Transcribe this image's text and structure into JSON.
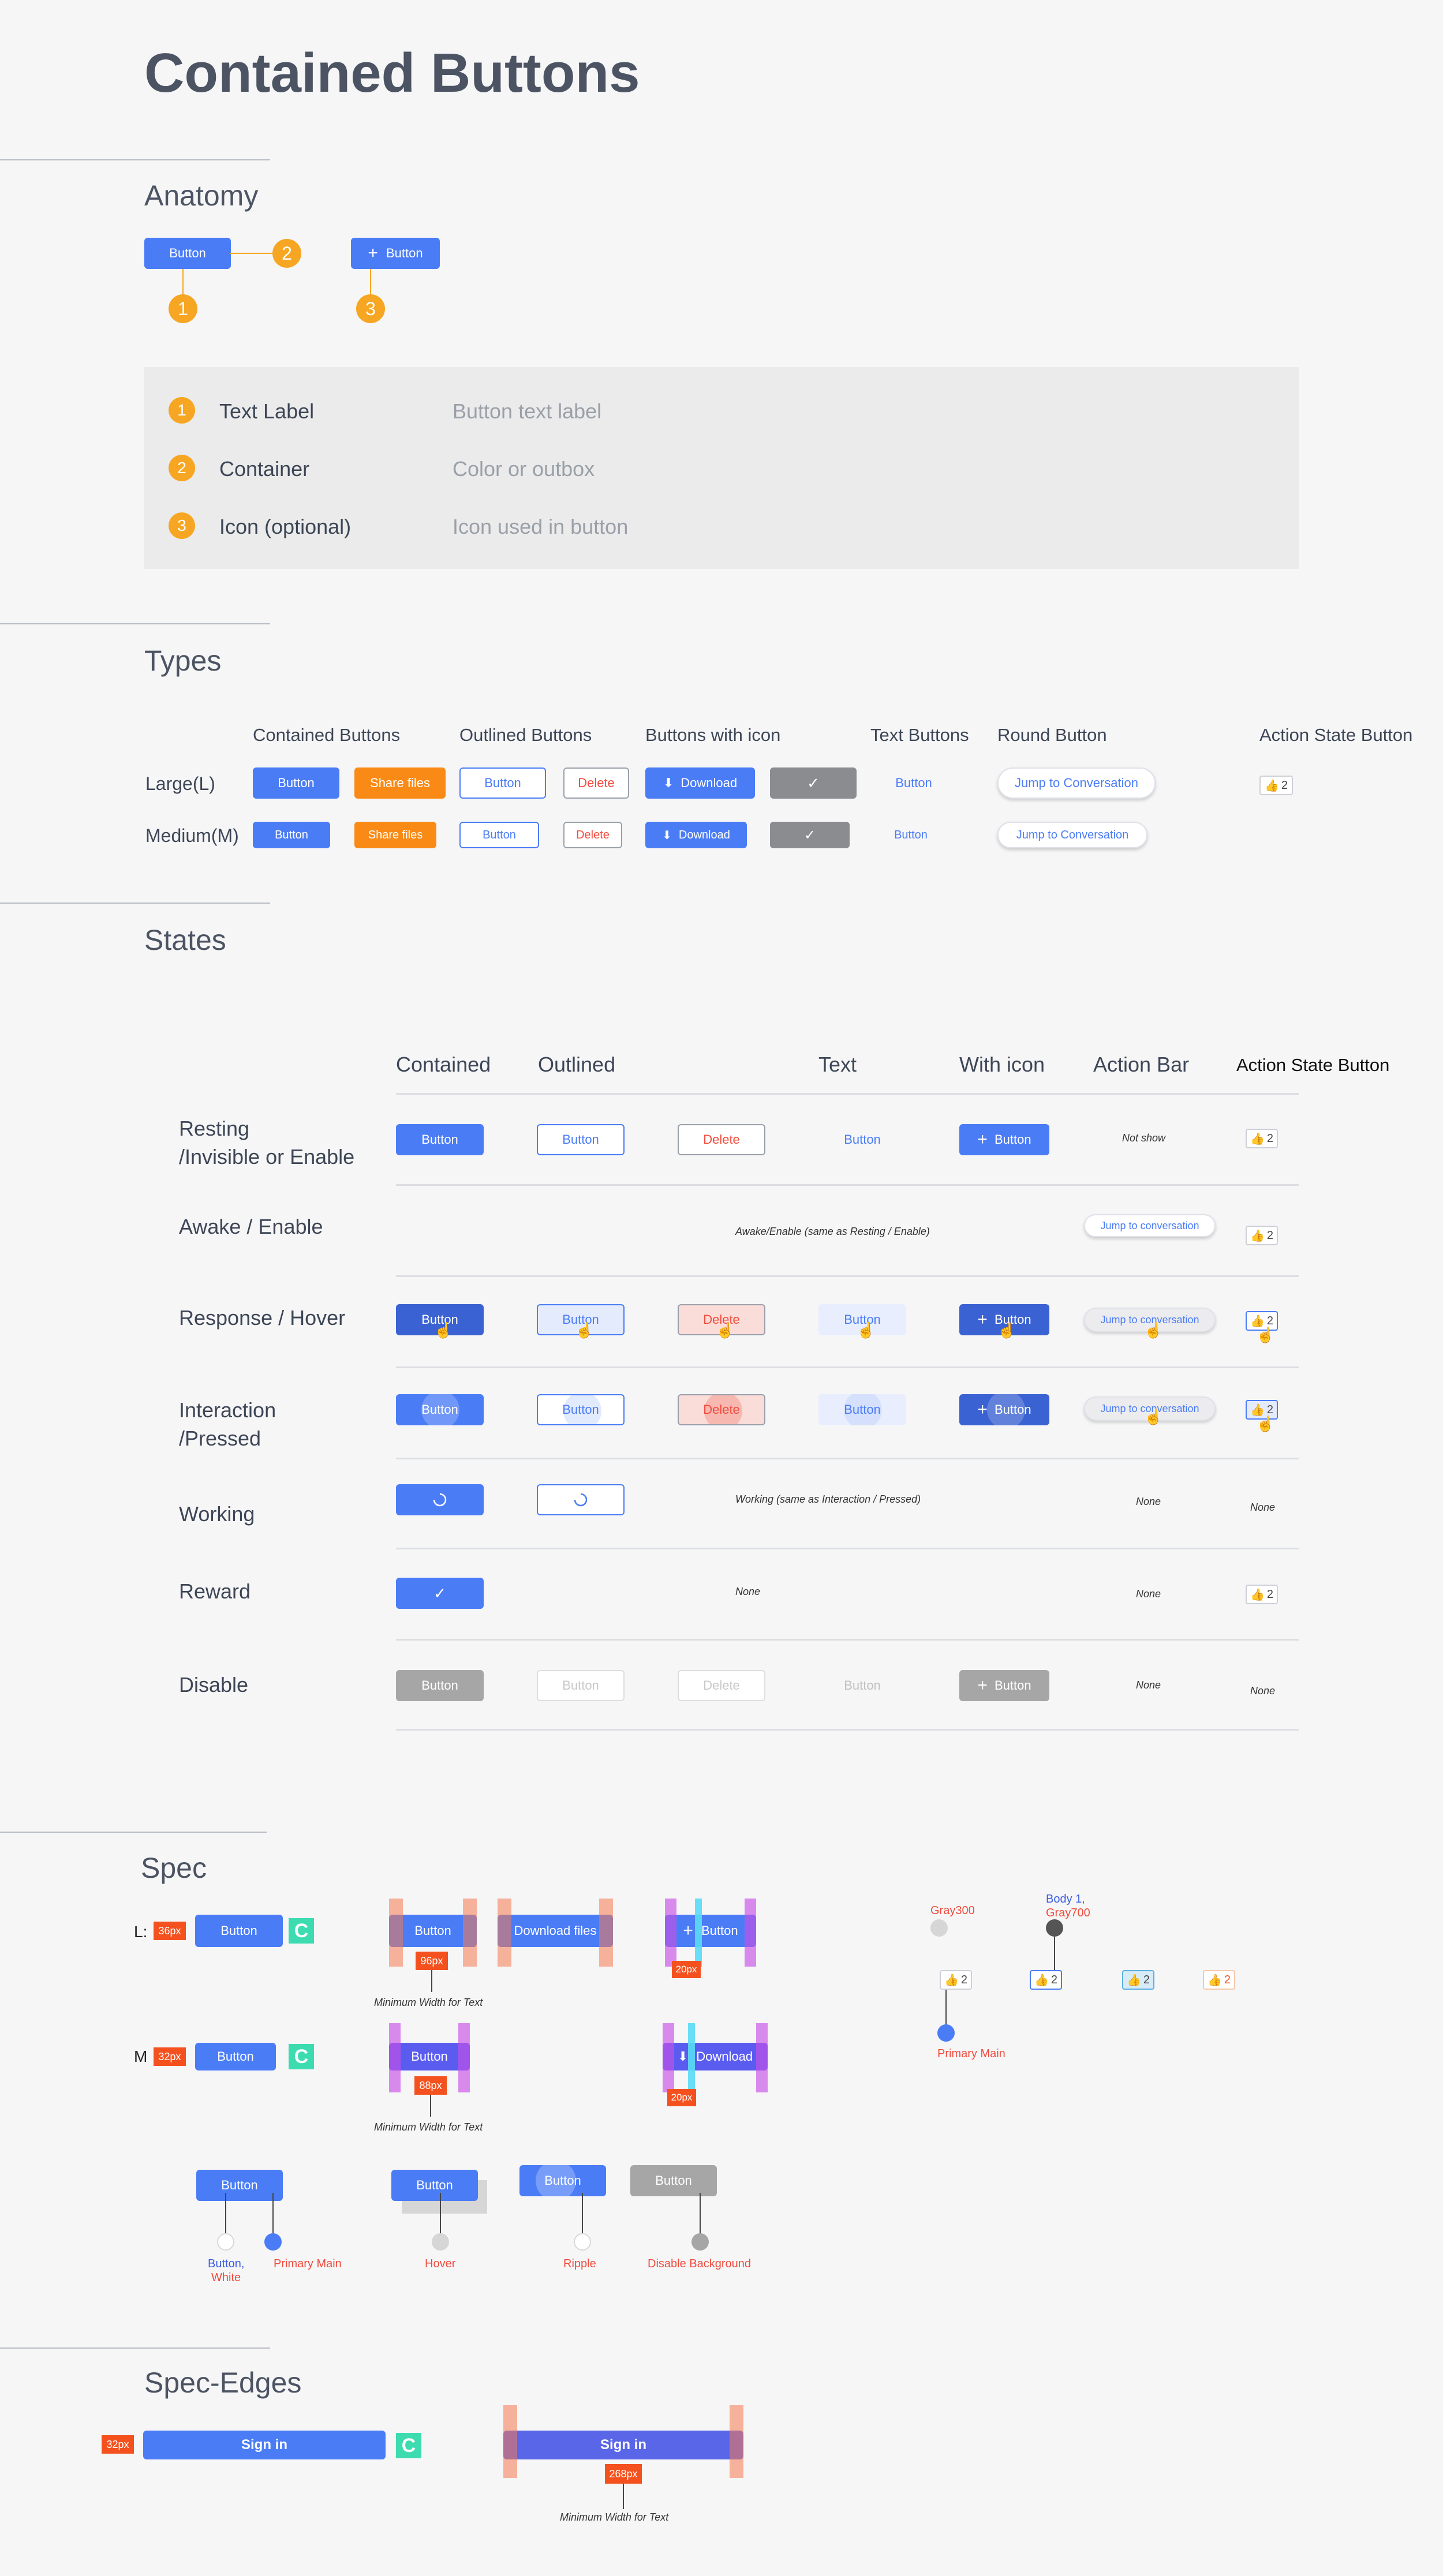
{
  "title": "Contained Buttons",
  "anatomy": {
    "heading": "Anatomy",
    "button_label": "Button",
    "icon_button_label": "Button",
    "markers": [
      "1",
      "2",
      "3"
    ],
    "legend": [
      {
        "num": "1",
        "name": "Text Label",
        "desc": "Button text label"
      },
      {
        "num": "2",
        "name": "Container",
        "desc": "Color or outbox"
      },
      {
        "num": "3",
        "name": "Icon (optional)",
        "desc": "Icon used in button"
      }
    ]
  },
  "types": {
    "heading": "Types",
    "columns": [
      "Contained Buttons",
      "Outlined Buttons",
      "Buttons with icon",
      "Text Buttons",
      "Round Button",
      "Action State Button"
    ],
    "rows": [
      "Large(L)",
      "Medium(M)"
    ],
    "labels": {
      "button": "Button",
      "share": "Share files",
      "delete": "Delete",
      "download": "Download",
      "round": "Jump to Conversation",
      "count": "2"
    }
  },
  "states": {
    "heading": "States",
    "columns": [
      "Contained",
      "Outlined",
      "Text",
      "With icon",
      "Action Bar",
      "Action State Button"
    ],
    "rows": [
      "Resting\n/Invisible or Enable",
      "Awake / Enable",
      "Response / Hover",
      "Interaction\n/Pressed",
      "Working",
      "Reward",
      "Disable"
    ],
    "labels": {
      "button": "Button",
      "delete": "Delete",
      "jump": "Jump to conversation",
      "count": "2"
    },
    "notes": {
      "not_show": "Not show",
      "awake": "Awake/Enable (same as Resting / Enable)",
      "working": "Working (same as Interaction / Pressed)",
      "none": "None"
    }
  },
  "spec": {
    "heading": "Spec",
    "row_l": "L:",
    "row_m": "M",
    "button": "Button",
    "download_files": "Download files",
    "download": "Download",
    "tags": {
      "h36": "36px",
      "h32": "32px",
      "w96": "96px",
      "w88": "88px",
      "g20": "20px",
      "g20b": "20px"
    },
    "c": "C",
    "min_width": "Minimum Width for Text",
    "action_notes": {
      "gray300": "Gray300",
      "body1": "Body 1,",
      "gray700": "Gray700",
      "primary": "Primary Main"
    },
    "count": "2",
    "color_notes": {
      "button_white_1": "Button,",
      "button_white_2": "White",
      "primary_main": "Primary Main",
      "hover": "Hover",
      "ripple": "Ripple",
      "disable_bg": "Disable Background"
    }
  },
  "edges": {
    "heading": "Spec-Edges",
    "sign_in": "Sign in",
    "h32": "32px",
    "w268": "268px",
    "c": "C",
    "min_width": "Minimum Width for Text"
  },
  "colors": {
    "primary": "#4a7cf6",
    "orange": "#f98a16",
    "badge": "#f6a623",
    "tag": "#f4511e",
    "teal": "#3ddbb0",
    "disabled": "#a6a6a6"
  }
}
